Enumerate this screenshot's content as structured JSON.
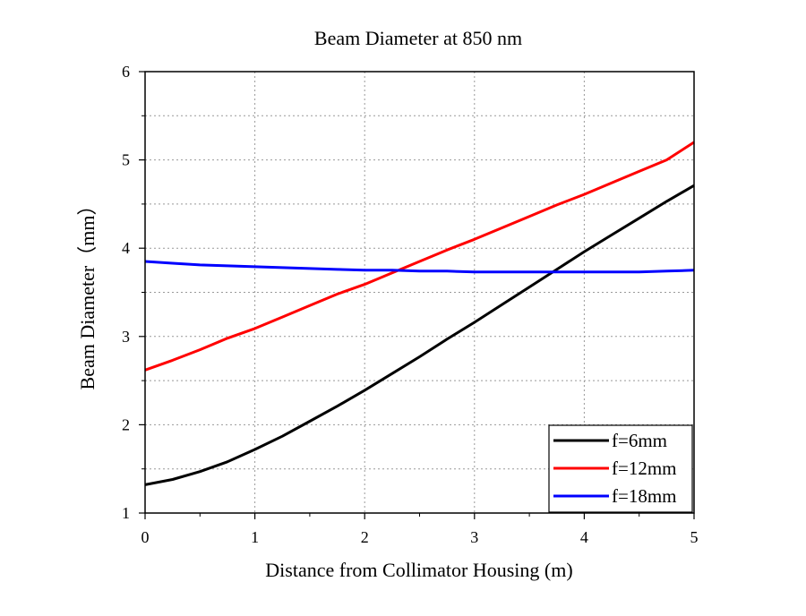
{
  "chart_data": {
    "type": "line",
    "title": "Beam Diameter at 850 nm",
    "xlabel": "Distance from Collimator Housing (m)",
    "ylabel": "Beam Diameter（mm）",
    "xlim": [
      0,
      5
    ],
    "ylim": [
      1,
      6
    ],
    "x_ticks": [
      0,
      1,
      2,
      3,
      4,
      5
    ],
    "y_ticks": [
      1,
      2,
      3,
      4,
      5,
      6
    ],
    "grid": true,
    "legend_position": "bottom-right",
    "x": [
      0,
      0.25,
      0.5,
      0.75,
      1,
      1.25,
      1.5,
      1.75,
      2,
      2.25,
      2.5,
      2.75,
      3,
      3.25,
      3.5,
      3.75,
      4,
      4.25,
      4.5,
      4.75,
      5
    ],
    "series": [
      {
        "name": "f=6mm",
        "color": "#000000",
        "values": [
          1.32,
          1.38,
          1.47,
          1.58,
          1.72,
          1.87,
          2.04,
          2.21,
          2.39,
          2.58,
          2.77,
          2.97,
          3.16,
          3.36,
          3.56,
          3.76,
          3.96,
          4.15,
          4.34,
          4.53,
          4.71
        ]
      },
      {
        "name": "f=12mm",
        "color": "#ff0000",
        "values": [
          2.62,
          2.73,
          2.85,
          2.98,
          3.09,
          3.22,
          3.35,
          3.48,
          3.59,
          3.72,
          3.85,
          3.98,
          4.1,
          4.23,
          4.36,
          4.49,
          4.61,
          4.74,
          4.87,
          5.0,
          5.2
        ]
      },
      {
        "name": "f=18mm",
        "color": "#0000ff",
        "values": [
          3.85,
          3.83,
          3.81,
          3.8,
          3.79,
          3.78,
          3.77,
          3.76,
          3.75,
          3.75,
          3.74,
          3.74,
          3.73,
          3.73,
          3.73,
          3.73,
          3.73,
          3.73,
          3.73,
          3.74,
          3.75
        ]
      }
    ]
  }
}
